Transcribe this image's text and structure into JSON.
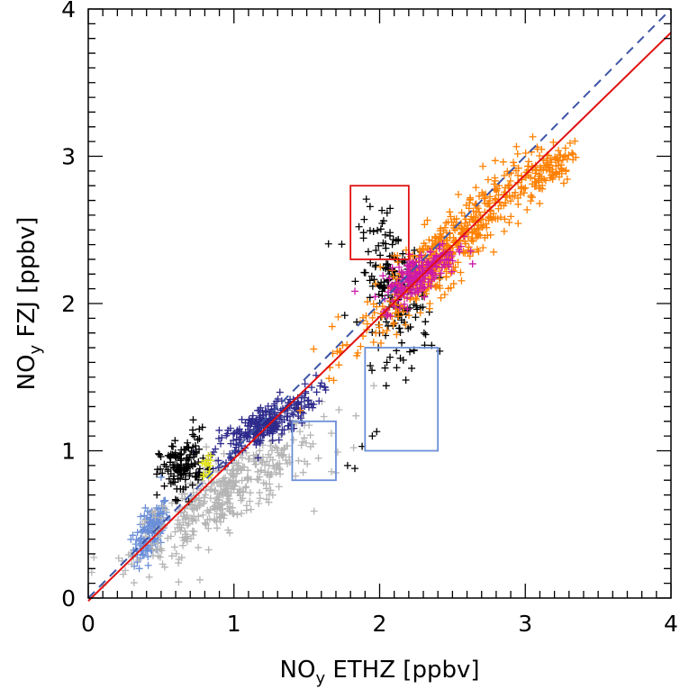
{
  "chart_data": {
    "type": "scatter",
    "title": "",
    "xlabel": {
      "base": "NO",
      "sub": "y",
      "rest": " ETHZ [ppbv]"
    },
    "ylabel": {
      "base": "NO",
      "sub": "y",
      "rest": " FZJ [ppbv]"
    },
    "xlim": [
      0,
      4
    ],
    "ylim": [
      0,
      4
    ],
    "xticks": [
      "0",
      "1",
      "2",
      "3",
      "4"
    ],
    "yticks": [
      "0",
      "1",
      "2",
      "3",
      "4"
    ],
    "grid": false,
    "marker": "+",
    "clusters": [
      {
        "color": "#6b8fd8",
        "count": 140,
        "cx": 0.43,
        "cy": 0.45,
        "sx": 0.06,
        "sy": 0.08,
        "slope": 1.0
      },
      {
        "color": "#b5b5b5",
        "count": 420,
        "cx": 0.95,
        "cy": 0.72,
        "sx": 0.32,
        "sy": 0.12,
        "slope": 0.62
      },
      {
        "color": "#2e2a8c",
        "count": 260,
        "cx": 1.2,
        "cy": 1.17,
        "sx": 0.18,
        "sy": 0.07,
        "slope": 0.55
      },
      {
        "color": "#000000",
        "count": 130,
        "cx": 0.65,
        "cy": 0.9,
        "sx": 0.08,
        "sy": 0.1,
        "slope": 0.4
      },
      {
        "color": "#e6e619",
        "count": 14,
        "cx": 0.82,
        "cy": 0.9,
        "sx": 0.02,
        "sy": 0.04,
        "slope": 0.0
      },
      {
        "color": "#000000",
        "count": 180,
        "cx": 2.1,
        "cy": 2.1,
        "sx": 0.12,
        "sy": 0.22,
        "slope": -0.6
      },
      {
        "color": "#ff8000",
        "count": 520,
        "cx": 2.45,
        "cy": 2.35,
        "sx": 0.3,
        "sy": 0.12,
        "slope": 0.9
      },
      {
        "color": "#ff8000",
        "count": 90,
        "cx": 3.15,
        "cy": 2.9,
        "sx": 0.1,
        "sy": 0.08,
        "slope": 0.6
      },
      {
        "color": "#cc1aa8",
        "count": 200,
        "cx": 2.27,
        "cy": 2.2,
        "sx": 0.13,
        "sy": 0.07,
        "slope": 0.6
      }
    ],
    "extra_points": [
      {
        "color": "#000000",
        "x": 1.95,
        "y": 1.1
      },
      {
        "color": "#000000",
        "x": 1.98,
        "y": 1.13
      },
      {
        "color": "#000000",
        "x": 2.18,
        "y": 1.48
      },
      {
        "color": "#000000",
        "x": 2.22,
        "y": 1.56
      },
      {
        "color": "#000000",
        "x": 2.05,
        "y": 1.6
      },
      {
        "color": "#000000",
        "x": 1.83,
        "y": 0.88
      },
      {
        "color": "#000000",
        "x": 1.78,
        "y": 0.9
      },
      {
        "color": "#000000",
        "x": 1.88,
        "y": 1.03
      },
      {
        "color": "#000000",
        "x": 0.72,
        "y": 1.21
      },
      {
        "color": "#b5b5b5",
        "x": 1.55,
        "y": 0.59
      },
      {
        "color": "#b5b5b5",
        "x": 1.7,
        "y": 0.85
      },
      {
        "color": "#b5b5b5",
        "x": 1.58,
        "y": 0.95
      },
      {
        "color": "#6b8fd8",
        "x": 0.35,
        "y": 0.2
      },
      {
        "color": "#6b8fd8",
        "x": 0.5,
        "y": 0.82
      }
    ],
    "lines": [
      {
        "name": "",
        "style": "dashed",
        "color": "#3d55a6",
        "x": [
          0,
          4
        ],
        "y": [
          0,
          4
        ]
      },
      {
        "name": "",
        "style": "solid",
        "color": "#e01010",
        "x": [
          0,
          4
        ],
        "y": [
          -0.02,
          3.84
        ]
      }
    ],
    "boxes": [
      {
        "color": "#e01010",
        "x": [
          1.8,
          2.2
        ],
        "y": [
          2.3,
          2.8
        ]
      },
      {
        "color": "#6b8fd8",
        "x": [
          1.9,
          2.4
        ],
        "y": [
          1.0,
          1.7
        ]
      },
      {
        "color": "#6b8fd8",
        "x": [
          1.4,
          1.7
        ],
        "y": [
          0.8,
          1.2
        ]
      }
    ]
  }
}
